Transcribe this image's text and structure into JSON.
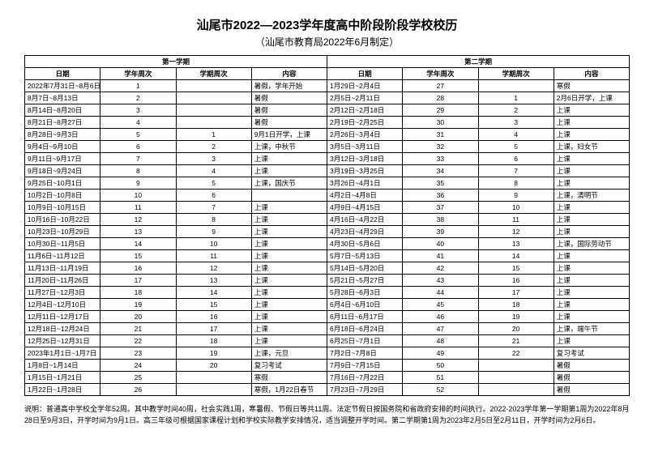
{
  "title": "汕尾市2022—2023学年度高中阶段阶段学校校历",
  "subtitle": "（汕尾市教育局2022年6月制定）",
  "header": {
    "semester1": "第一学期",
    "semester2": "第二学期",
    "date": "日期",
    "yearWeek": "学年周次",
    "semWeek": "学期周次",
    "content": "内容"
  },
  "rows": [
    {
      "d1": "2022年7月31日~8月6日",
      "yw1": "1",
      "sw1": "",
      "c1": "暑假，学年开始",
      "d2": "1月29日~2月4日",
      "yw2": "27",
      "sw2": "",
      "c2": "寒假"
    },
    {
      "d1": "8月7日~8月13日",
      "yw1": "2",
      "sw1": "",
      "c1": "暑假",
      "d2": "2月5日~2月11日",
      "yw2": "28",
      "sw2": "1",
      "c2": "2月6日开学，上课"
    },
    {
      "d1": "8月14日~8月20日",
      "yw1": "3",
      "sw1": "",
      "c1": "暑假",
      "d2": "2月12日~2月18日",
      "yw2": "29",
      "sw2": "2",
      "c2": "上课"
    },
    {
      "d1": "8月21日~8月27日",
      "yw1": "4",
      "sw1": "",
      "c1": "暑假",
      "d2": "2月19日~2月25日",
      "yw2": "30",
      "sw2": "3",
      "c2": "上课"
    },
    {
      "d1": "8月28日~9月3日",
      "yw1": "5",
      "sw1": "1",
      "c1": "9月1日开学，上课",
      "d2": "2月26日~3月4日",
      "yw2": "31",
      "sw2": "4",
      "c2": "上课"
    },
    {
      "d1": "9月4日~9月10日",
      "yw1": "6",
      "sw1": "2",
      "c1": "上课，中秋节",
      "d2": "3月5日~3月11日",
      "yw2": "32",
      "sw2": "5",
      "c2": "上课，妇女节"
    },
    {
      "d1": "9月11日~9月17日",
      "yw1": "7",
      "sw1": "3",
      "c1": "上课",
      "d2": "3月12日~3月18日",
      "yw2": "33",
      "sw2": "6",
      "c2": "上课"
    },
    {
      "d1": "9月18日~9月24日",
      "yw1": "8",
      "sw1": "4",
      "c1": "上课",
      "d2": "3月19日~3月25日",
      "yw2": "34",
      "sw2": "7",
      "c2": "上课"
    },
    {
      "d1": "9月25日~10月1日",
      "yw1": "9",
      "sw1": "5",
      "c1": "上课，国庆节",
      "d2": "3月26日~4月1日",
      "yw2": "35",
      "sw2": "8",
      "c2": "上课"
    },
    {
      "d1": "10月2日~10月8日",
      "yw1": "10",
      "sw1": "6",
      "c1": "",
      "d2": "4月2日~4月8日",
      "yw2": "36",
      "sw2": "9",
      "c2": "上课，清明节"
    },
    {
      "d1": "10月9日~10月15日",
      "yw1": "11",
      "sw1": "7",
      "c1": "上课",
      "d2": "4月9日~4月15日",
      "yw2": "37",
      "sw2": "10",
      "c2": "上课"
    },
    {
      "d1": "10月16日~10月22日",
      "yw1": "12",
      "sw1": "8",
      "c1": "上课",
      "d2": "4月16日~4月22日",
      "yw2": "38",
      "sw2": "11",
      "c2": "上课"
    },
    {
      "d1": "10月23日~10月29日",
      "yw1": "13",
      "sw1": "9",
      "c1": "上课",
      "d2": "4月23日~4月29日",
      "yw2": "39",
      "sw2": "12",
      "c2": "上课"
    },
    {
      "d1": "10月30日~11月5日",
      "yw1": "14",
      "sw1": "10",
      "c1": "上课",
      "d2": "4月30日~5月6日",
      "yw2": "40",
      "sw2": "13",
      "c2": "上课，国际劳动节"
    },
    {
      "d1": "11月6日~11月12日",
      "yw1": "15",
      "sw1": "11",
      "c1": "上课",
      "d2": "5月7日~5月13日",
      "yw2": "41",
      "sw2": "14",
      "c2": "上课"
    },
    {
      "d1": "11月13日~11月19日",
      "yw1": "16",
      "sw1": "12",
      "c1": "上课",
      "d2": "5月14日~5月20日",
      "yw2": "42",
      "sw2": "15",
      "c2": "上课"
    },
    {
      "d1": "11月20日~11月26日",
      "yw1": "17",
      "sw1": "13",
      "c1": "上课",
      "d2": "5月21日~5月27日",
      "yw2": "43",
      "sw2": "16",
      "c2": "上课"
    },
    {
      "d1": "11月27日~12月3日",
      "yw1": "18",
      "sw1": "14",
      "c1": "上课",
      "d2": "5月28日~6月3日",
      "yw2": "44",
      "sw2": "17",
      "c2": "上课"
    },
    {
      "d1": "12月4日~12月10日",
      "yw1": "19",
      "sw1": "15",
      "c1": "上课",
      "d2": "6月4日~6月10日",
      "yw2": "45",
      "sw2": "18",
      "c2": "上课"
    },
    {
      "d1": "12月11日~12月17日",
      "yw1": "20",
      "sw1": "16",
      "c1": "上课",
      "d2": "6月11日~6月17日",
      "yw2": "46",
      "sw2": "19",
      "c2": "上课"
    },
    {
      "d1": "12月18日~12月24日",
      "yw1": "21",
      "sw1": "17",
      "c1": "上课",
      "d2": "6月18日~6月24日",
      "yw2": "47",
      "sw2": "20",
      "c2": "上课，端午节"
    },
    {
      "d1": "12月25日~12月31日",
      "yw1": "22",
      "sw1": "18",
      "c1": "上课",
      "d2": "6月25日~7月1日",
      "yw2": "48",
      "sw2": "21",
      "c2": "上课"
    },
    {
      "d1": "2023年1月1日~1月7日",
      "yw1": "23",
      "sw1": "19",
      "c1": "上课，元旦",
      "d2": "7月2日~7月8日",
      "yw2": "49",
      "sw2": "22",
      "c2": "复习考试"
    },
    {
      "d1": "1月8日~1月14日",
      "yw1": "24",
      "sw1": "20",
      "c1": "复习考试",
      "d2": "7月9日~7月15日",
      "yw2": "50",
      "sw2": "",
      "c2": "暑假"
    },
    {
      "d1": "1月15日~1月21日",
      "yw1": "25",
      "sw1": "",
      "c1": "寒假",
      "d2": "7月16日~7月22日",
      "yw2": "51",
      "sw2": "",
      "c2": "暑假"
    },
    {
      "d1": "1月22日~1月28日",
      "yw1": "26",
      "sw1": "",
      "c1": "寒假，1月22日春节",
      "d2": "7月23日~7月29日",
      "yw2": "52",
      "sw2": "",
      "c2": "暑假"
    }
  ],
  "notes": "说明：普通高中学校全学年52周。其中教学时间40周，社会实践1周，寒暑假、节假日等共11周。法定节假日按国务院和省政府安排的时间执行。2022-2023学年第一学期第1周为2022年8月28日至9月3日，开学时间为9月1日。高三年级可根据国家课程计划和学校实际教学安排情况，适当调整开学时间。第二学期第1周为2023年2月5日至2月11日，开学时间为2月6日。"
}
